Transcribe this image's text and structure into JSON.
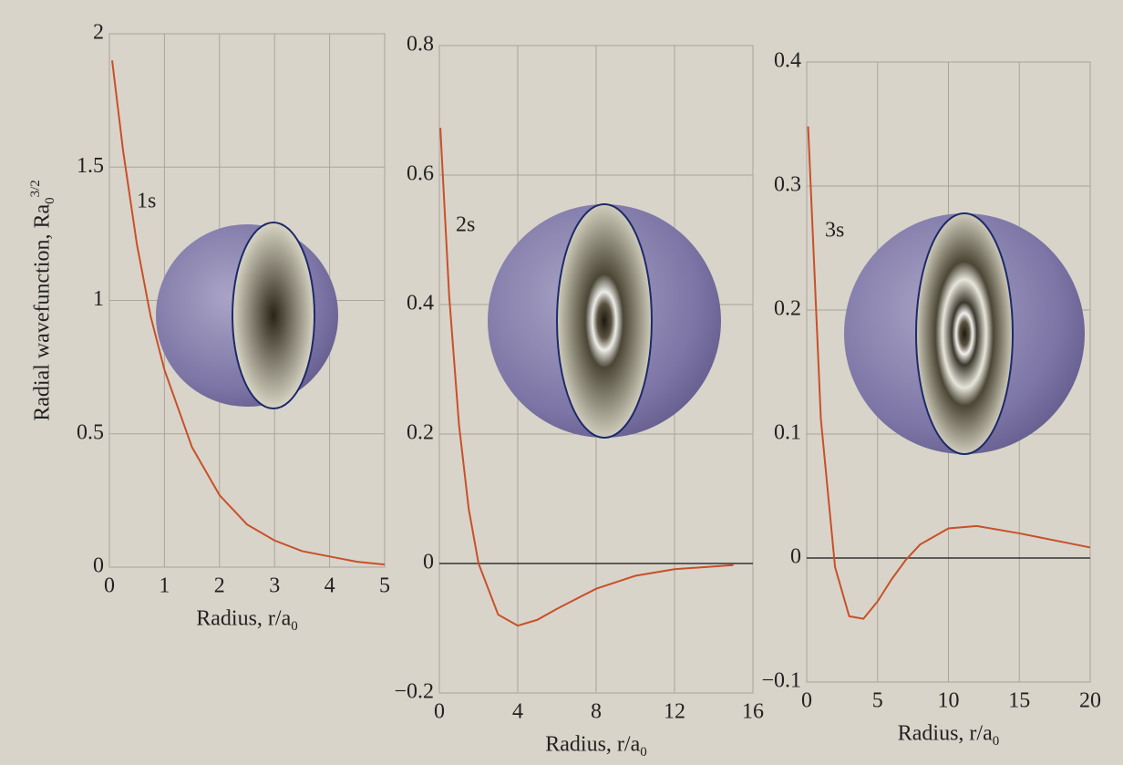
{
  "chart_data": [
    {
      "type": "line",
      "annotation": "1s",
      "ylabel": "Radial wavefunction, Ra",
      "ylabel_sub": "0",
      "ylabel_sup": "3/2",
      "xlabel": "Radius, r/a",
      "xlabel_sub": "0",
      "x": [
        0.05,
        0.25,
        0.5,
        0.75,
        1,
        1.5,
        2,
        2.5,
        3,
        3.5,
        4,
        4.5,
        5
      ],
      "series": [
        {
          "color": "#c8502a",
          "values": [
            1.9,
            1.56,
            1.21,
            0.94,
            0.74,
            0.45,
            0.27,
            0.16,
            0.1,
            0.06,
            0.04,
            0.02,
            0.01
          ]
        }
      ],
      "xlim": [
        0,
        5
      ],
      "xticks": [
        0,
        1,
        2,
        3,
        4,
        5
      ],
      "ylim": [
        0,
        2
      ],
      "yticks": [
        0,
        0.5,
        1,
        1.5,
        2
      ],
      "grid": true
    },
    {
      "type": "line",
      "annotation": "2s",
      "xlabel": "Radius, r/a",
      "xlabel_sub": "0",
      "x": [
        0.05,
        0.5,
        1,
        1.5,
        2,
        3,
        4,
        5,
        6,
        8,
        10,
        12,
        15
      ],
      "series": [
        {
          "color": "#c8502a",
          "values": [
            0.673,
            0.414,
            0.215,
            0.084,
            0,
            -0.079,
            -0.096,
            -0.087,
            -0.07,
            -0.039,
            -0.019,
            -0.0088,
            -0.0025
          ]
        }
      ],
      "xlim": [
        0,
        16
      ],
      "xticks": [
        0,
        4,
        8,
        12,
        16
      ],
      "ylim": [
        -0.2,
        0.8
      ],
      "yticks": [
        {
          "value": -0.2,
          "label": "−0.2"
        },
        0,
        0.2,
        0.4,
        0.6,
        0.8
      ],
      "grid": true
    },
    {
      "type": "line",
      "annotation": "3s",
      "xlabel": "Radius, r/a",
      "xlabel_sub": "0",
      "x": [
        0.1,
        1,
        2,
        3,
        4,
        5,
        6,
        7,
        8,
        10,
        12,
        15,
        20
      ],
      "series": [
        {
          "color": "#c8502a",
          "values": [
            0.348,
            0.112,
            -0.0073,
            -0.047,
            -0.049,
            -0.035,
            -0.017,
            -0.0014,
            0.0109,
            0.0239,
            0.0258,
            0.0199,
            0.0085
          ]
        }
      ],
      "xlim": [
        0,
        20
      ],
      "xticks": [
        0,
        5,
        10,
        15,
        20
      ],
      "ylim": [
        -0.1,
        0.4
      ],
      "yticks": [
        {
          "value": -0.1,
          "label": "−0.1"
        },
        0,
        0.1,
        0.2,
        0.3,
        0.4
      ],
      "grid": true
    }
  ]
}
